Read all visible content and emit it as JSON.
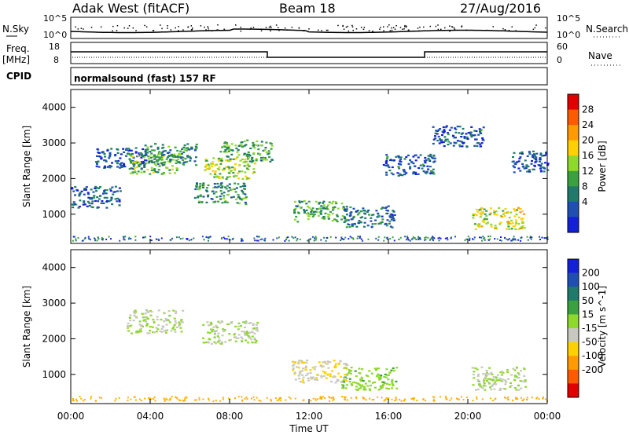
{
  "header": {
    "site": "Adak West (fitACF)",
    "beam": "Beam 18",
    "date": "27/Aug/2016"
  },
  "cpid": {
    "label": "CPID",
    "program": "normalsound (fast) 157 RF"
  },
  "noise_panel": {
    "left_label": "N.Sky",
    "right_label": "N.Search",
    "left_ticks": [
      "10^5",
      "10^0"
    ],
    "right_ticks": [
      "10^5",
      "10^0"
    ]
  },
  "freq_panel": {
    "left_label_1": "Freq.",
    "left_label_2": "[MHz]",
    "right_label": "Nave",
    "left_ticks": [
      "18",
      "8"
    ],
    "right_ticks": [
      "60",
      "0"
    ]
  },
  "colors": {
    "line": "#000000",
    "background": "#ffffff"
  },
  "chart_data": [
    {
      "type": "heatmap",
      "title": "",
      "xlabel": "",
      "ylabel": "Slant Range [km]",
      "x_range": [
        "00:00",
        "00:00"
      ],
      "ylim": [
        180,
        4500
      ],
      "y_ticks": [
        "4000",
        "3000",
        "2000",
        "1000"
      ],
      "colorbar": {
        "label": "Power [dB]",
        "ticks": [
          "28",
          "24",
          "20",
          "16",
          "12",
          "8",
          "4"
        ],
        "colors": [
          "#e00000",
          "#ff5a00",
          "#ff9a00",
          "#ffd000",
          "#8fd82c",
          "#3aa040",
          "#1f7a6a",
          "#1f4fb0",
          "#1420d8"
        ]
      },
      "regions": [
        {
          "t": 1.2,
          "r": 1500,
          "v": 6
        },
        {
          "t": 2.5,
          "r": 2600,
          "v": 5
        },
        {
          "t": 4.2,
          "r": 2450,
          "v": 14
        },
        {
          "t": 5.0,
          "r": 2700,
          "v": 10
        },
        {
          "t": 8.0,
          "r": 2300,
          "v": 16
        },
        {
          "t": 8.8,
          "r": 2800,
          "v": 12
        },
        {
          "t": 7.5,
          "r": 1600,
          "v": 10
        },
        {
          "t": 12.5,
          "r": 1100,
          "v": 12
        },
        {
          "t": 15.0,
          "r": 950,
          "v": 8
        },
        {
          "t": 17.0,
          "r": 2400,
          "v": 6
        },
        {
          "t": 19.5,
          "r": 3200,
          "v": 6
        },
        {
          "t": 21.5,
          "r": 900,
          "v": 18
        },
        {
          "t": 23.5,
          "r": 2500,
          "v": 6
        }
      ]
    },
    {
      "type": "heatmap",
      "title": "",
      "xlabel": "Time UT",
      "ylabel": "Slant Range [km]",
      "x_ticks": [
        "00:00",
        "04:00",
        "08:00",
        "12:00",
        "16:00",
        "20:00",
        "00:00"
      ],
      "ylim": [
        180,
        4500
      ],
      "y_ticks": [
        "4000",
        "3000",
        "2000",
        "1000"
      ],
      "colorbar": {
        "label": "Velocity [m s^-1]",
        "ticks": [
          "200",
          "100",
          "50",
          "15",
          "-15",
          "-50",
          "-100",
          "-200"
        ],
        "colors": [
          "#1420d8",
          "#1f4fb0",
          "#1f7a6a",
          "#3aa040",
          "#8fd82c",
          "#c8c8c0",
          "#ffd000",
          "#ff9a00",
          "#ff5a00",
          "#e00000"
        ]
      },
      "regions": [
        {
          "t": 4.2,
          "r": 2500,
          "v": 0
        },
        {
          "t": 8.0,
          "r": 2200,
          "v": 0
        },
        {
          "t": 12.5,
          "r": 1100,
          "v": -40
        },
        {
          "t": 15.0,
          "r": 900,
          "v": 30
        },
        {
          "t": 21.5,
          "r": 900,
          "v": 0
        }
      ]
    }
  ]
}
